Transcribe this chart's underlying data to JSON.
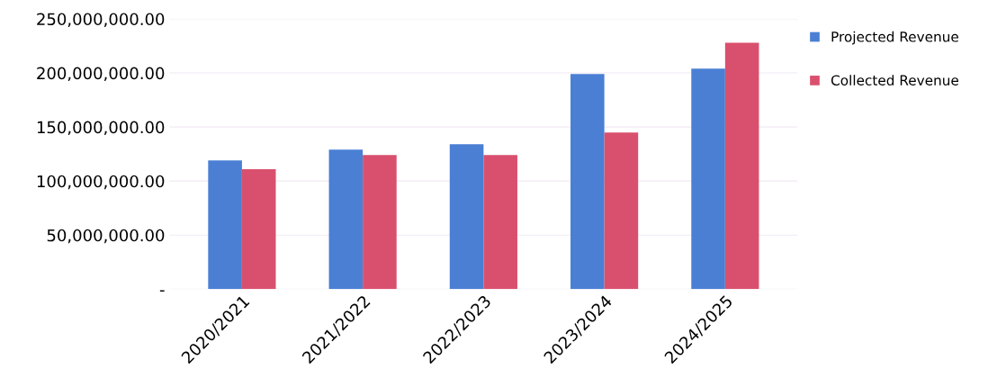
{
  "chart_data": {
    "type": "bar",
    "categories": [
      "2020/2021",
      "2021/2022",
      "2022/2023",
      "2023/2024",
      "2024/2025"
    ],
    "series": [
      {
        "name": "Projected Revenue",
        "color": "#4a7fd4",
        "values": [
          119000000,
          129000000,
          134000000,
          199000000,
          204000000
        ]
      },
      {
        "name": "Collected Revenue",
        "color": "#d9506e",
        "values": [
          111000000,
          124000000,
          124000000,
          145000000,
          228000000
        ]
      }
    ],
    "ylim": [
      0,
      250000000
    ],
    "yticks": [
      {
        "value": 0,
        "label": "-"
      },
      {
        "value": 50000000,
        "label": "50,000,000.00"
      },
      {
        "value": 100000000,
        "label": "100,000,000.00"
      },
      {
        "value": 150000000,
        "label": "150,000,000.00"
      },
      {
        "value": 200000000,
        "label": "200,000,000.00"
      },
      {
        "value": 250000000,
        "label": "250,000,000.00"
      }
    ],
    "grid": "y",
    "legend": "top right"
  }
}
